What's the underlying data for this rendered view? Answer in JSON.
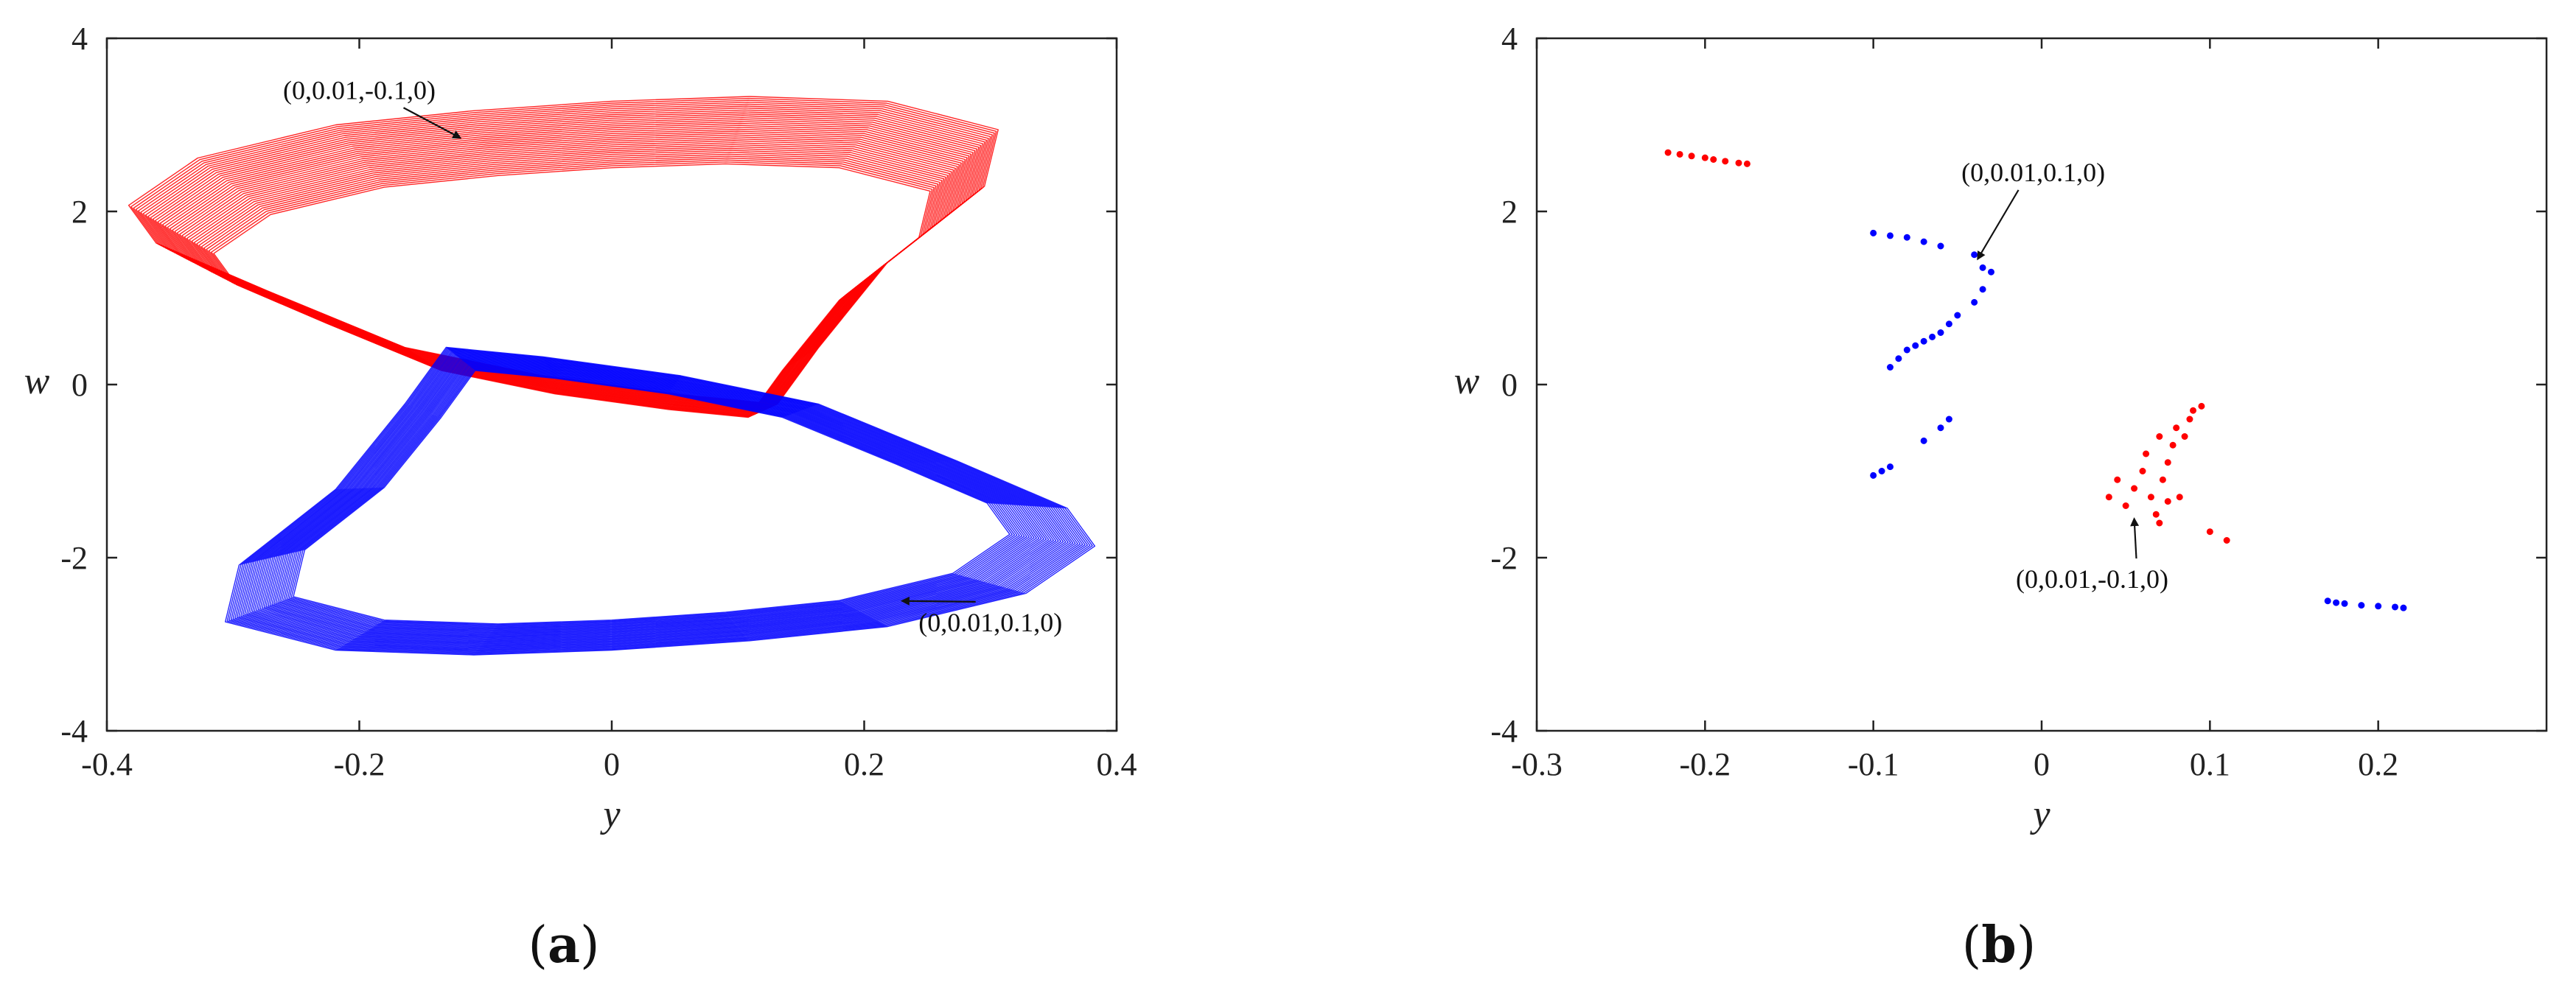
{
  "chart_data": [
    {
      "type": "line",
      "panel_label": "(a)",
      "panel_letter": "a",
      "xlabel": "y",
      "ylabel": "w",
      "xlim": [
        -0.4,
        0.4
      ],
      "ylim": [
        -4,
        4
      ],
      "xticks": [
        -0.4,
        -0.2,
        0,
        0.2,
        0.4
      ],
      "xtick_labels": [
        "-0.4",
        "-0.2",
        "0",
        "0.2",
        "0.4"
      ],
      "yticks": [
        -4,
        -2,
        0,
        2,
        4
      ],
      "ytick_labels": [
        "-4",
        "-2",
        "0",
        "2",
        "4"
      ],
      "grid": false,
      "series": [
        {
          "color": "#ff0000",
          "points": [
            [
              -0.35,
              1.8
            ],
            [
              -0.3,
              2.3
            ],
            [
              -0.2,
              2.65
            ],
            [
              -0.1,
              2.8
            ],
            [
              0.0,
              2.9
            ],
            [
              0.1,
              2.95
            ],
            [
              0.2,
              2.9
            ],
            [
              0.28,
              2.6
            ],
            [
              0.27,
              2.0
            ],
            [
              0.2,
              1.2
            ],
            [
              0.15,
              0.3
            ],
            [
              0.12,
              -0.3
            ],
            [
              0.05,
              -0.2
            ],
            [
              -0.05,
              0.0
            ],
            [
              -0.15,
              0.3
            ],
            [
              -0.25,
              0.9
            ],
            [
              -0.33,
              1.4
            ],
            [
              -0.35,
              1.8
            ]
          ]
        },
        {
          "color": "#0000ff",
          "points": [
            [
              0.35,
              -1.8
            ],
            [
              0.3,
              -2.3
            ],
            [
              0.2,
              -2.65
            ],
            [
              0.1,
              -2.8
            ],
            [
              0.0,
              -2.9
            ],
            [
              -0.1,
              -2.95
            ],
            [
              -0.2,
              -2.9
            ],
            [
              -0.28,
              -2.6
            ],
            [
              -0.27,
              -2.0
            ],
            [
              -0.2,
              -1.2
            ],
            [
              -0.15,
              -0.3
            ],
            [
              -0.12,
              0.3
            ],
            [
              -0.05,
              0.2
            ],
            [
              0.05,
              0.0
            ],
            [
              0.15,
              -0.3
            ],
            [
              0.25,
              -0.9
            ],
            [
              0.33,
              -1.4
            ],
            [
              0.35,
              -1.8
            ]
          ]
        }
      ],
      "annotations": [
        {
          "text": "(0,0.01,-0.1,0)",
          "x": -0.2,
          "y": 3.3,
          "arrow_to": [
            -0.12,
            2.85
          ]
        },
        {
          "text": "(0,0.01,0.1,0)",
          "x": 0.3,
          "y": -2.85,
          "arrow_to": [
            0.23,
            -2.5
          ]
        }
      ]
    },
    {
      "type": "scatter",
      "panel_label": "(b)",
      "panel_letter": "b",
      "xlabel": "y",
      "ylabel": "w",
      "xlim": [
        -0.3,
        0.3
      ],
      "ylim": [
        -4,
        4
      ],
      "xticks": [
        -0.3,
        -0.2,
        -0.1,
        0,
        0.1,
        0.2
      ],
      "xtick_labels": [
        "-0.3",
        "-0.2",
        "-0.1",
        "0",
        "0.1",
        "0.2"
      ],
      "yticks": [
        -4,
        -2,
        0,
        2,
        4
      ],
      "ytick_labels": [
        "-4",
        "-2",
        "0",
        "2",
        "4"
      ],
      "grid": false,
      "series": [
        {
          "color": "#ff0000",
          "points": [
            [
              -0.222,
              2.68
            ],
            [
              -0.215,
              2.66
            ],
            [
              -0.208,
              2.64
            ],
            [
              -0.2,
              2.62
            ],
            [
              -0.195,
              2.6
            ],
            [
              -0.188,
              2.58
            ],
            [
              -0.18,
              2.56
            ],
            [
              -0.175,
              2.55
            ],
            [
              0.04,
              -1.3
            ],
            [
              0.045,
              -1.1
            ],
            [
              0.05,
              -1.4
            ],
            [
              0.055,
              -1.2
            ],
            [
              0.06,
              -1.0
            ],
            [
              0.062,
              -0.8
            ],
            [
              0.065,
              -1.3
            ],
            [
              0.068,
              -1.5
            ],
            [
              0.07,
              -0.6
            ],
            [
              0.072,
              -1.1
            ],
            [
              0.075,
              -0.9
            ],
            [
              0.078,
              -0.7
            ],
            [
              0.08,
              -0.5
            ],
            [
              0.082,
              -1.3
            ],
            [
              0.085,
              -0.6
            ],
            [
              0.088,
              -0.4
            ],
            [
              0.09,
              -0.3
            ],
            [
              0.095,
              -0.25
            ],
            [
              0.1,
              -1.7
            ],
            [
              0.11,
              -1.8
            ],
            [
              0.07,
              -1.6
            ],
            [
              0.075,
              -1.35
            ]
          ]
        },
        {
          "color": "#0000ff",
          "points": [
            [
              -0.1,
              1.75
            ],
            [
              -0.09,
              1.72
            ],
            [
              -0.08,
              1.7
            ],
            [
              -0.07,
              1.65
            ],
            [
              -0.06,
              1.6
            ],
            [
              -0.04,
              1.5
            ],
            [
              -0.035,
              1.35
            ],
            [
              -0.03,
              1.3
            ],
            [
              -0.035,
              1.1
            ],
            [
              -0.04,
              0.95
            ],
            [
              -0.05,
              0.8
            ],
            [
              -0.055,
              0.7
            ],
            [
              -0.06,
              0.6
            ],
            [
              -0.065,
              0.55
            ],
            [
              -0.07,
              0.5
            ],
            [
              -0.075,
              0.45
            ],
            [
              -0.08,
              0.4
            ],
            [
              -0.085,
              0.3
            ],
            [
              -0.09,
              0.2
            ],
            [
              -0.1,
              -1.05
            ],
            [
              -0.095,
              -1.0
            ],
            [
              -0.09,
              -0.95
            ],
            [
              -0.07,
              -0.65
            ],
            [
              -0.06,
              -0.5
            ],
            [
              -0.055,
              -0.4
            ],
            [
              0.17,
              -2.5
            ],
            [
              0.175,
              -2.52
            ],
            [
              0.18,
              -2.53
            ],
            [
              0.19,
              -2.55
            ],
            [
              0.2,
              -2.56
            ],
            [
              0.21,
              -2.57
            ],
            [
              0.215,
              -2.58
            ]
          ]
        }
      ],
      "annotations": [
        {
          "text": "(0,0.01,0.1,0)",
          "x": -0.005,
          "y": 2.35,
          "arrow_to": [
            -0.038,
            1.45
          ]
        },
        {
          "text": "(0,0.01,-0.1,0)",
          "x": 0.03,
          "y": -2.35,
          "arrow_to": [
            0.055,
            -1.55
          ]
        }
      ]
    }
  ]
}
